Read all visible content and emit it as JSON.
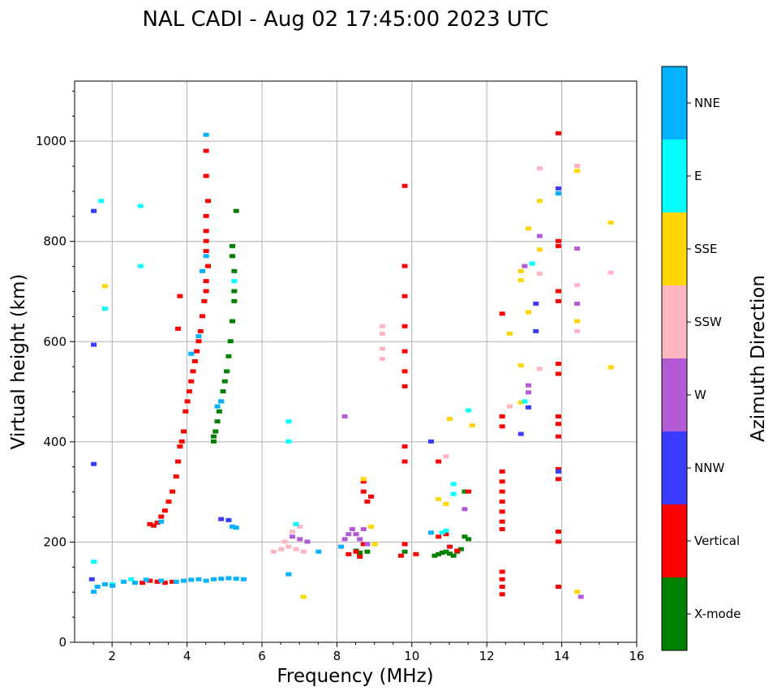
{
  "chart_data": {
    "type": "scatter",
    "title": "NAL CADI - Aug 02 17:45:00 2023 UTC",
    "xlabel": "Frequency (MHz)",
    "ylabel": "Virtual height (km)",
    "xlim": [
      1,
      16
    ],
    "ylim": [
      0,
      1120
    ],
    "xticks": [
      2,
      4,
      6,
      8,
      10,
      12,
      14,
      16
    ],
    "yticks": [
      0,
      200,
      400,
      600,
      800,
      1000
    ],
    "grid": true,
    "colorbar": {
      "label": "Azimuth Direction",
      "entries": [
        {
          "name": "X-mode",
          "color": "#008000"
        },
        {
          "name": "Vertical",
          "color": "#ff0000"
        },
        {
          "name": "NNW",
          "color": "#3b3bff"
        },
        {
          "name": "W",
          "color": "#b35ad6"
        },
        {
          "name": "SSW",
          "color": "#ffb6c1"
        },
        {
          "name": "SSE",
          "color": "#ffd700"
        },
        {
          "name": "E",
          "color": "#00ffff"
        },
        {
          "name": "NNE",
          "color": "#00b2ff"
        }
      ]
    },
    "series": [
      {
        "name": "X-mode",
        "points": [
          [
            4.7,
            400
          ],
          [
            4.7,
            410
          ],
          [
            4.75,
            420
          ],
          [
            4.8,
            440
          ],
          [
            4.85,
            460
          ],
          [
            4.9,
            480
          ],
          [
            4.95,
            500
          ],
          [
            5.0,
            520
          ],
          [
            5.05,
            540
          ],
          [
            5.1,
            570
          ],
          [
            5.15,
            600
          ],
          [
            5.2,
            640
          ],
          [
            5.25,
            680
          ],
          [
            5.25,
            700
          ],
          [
            5.25,
            740
          ],
          [
            5.2,
            770
          ],
          [
            5.2,
            790
          ],
          [
            5.3,
            860
          ],
          [
            10.6,
            172
          ],
          [
            10.7,
            175
          ],
          [
            10.8,
            178
          ],
          [
            10.9,
            180
          ],
          [
            11.0,
            176
          ],
          [
            11.1,
            172
          ],
          [
            11.2,
            180
          ],
          [
            11.3,
            185
          ],
          [
            11.4,
            210
          ],
          [
            11.5,
            205
          ],
          [
            11.4,
            300
          ],
          [
            8.5,
            182
          ],
          [
            8.6,
            178
          ],
          [
            8.8,
            180
          ],
          [
            9.8,
            180
          ]
        ]
      },
      {
        "name": "Vertical",
        "points": [
          [
            3.0,
            235
          ],
          [
            3.1,
            232
          ],
          [
            3.2,
            238
          ],
          [
            3.3,
            250
          ],
          [
            3.4,
            262
          ],
          [
            3.5,
            280
          ],
          [
            3.6,
            300
          ],
          [
            3.7,
            330
          ],
          [
            3.75,
            360
          ],
          [
            3.8,
            390
          ],
          [
            3.85,
            400
          ],
          [
            3.9,
            420
          ],
          [
            3.95,
            460
          ],
          [
            4.0,
            480
          ],
          [
            4.05,
            500
          ],
          [
            4.1,
            520
          ],
          [
            4.15,
            540
          ],
          [
            4.2,
            560
          ],
          [
            4.25,
            580
          ],
          [
            4.3,
            600
          ],
          [
            4.35,
            620
          ],
          [
            4.4,
            650
          ],
          [
            4.45,
            680
          ],
          [
            4.5,
            700
          ],
          [
            4.5,
            720
          ],
          [
            4.55,
            750
          ],
          [
            4.5,
            780
          ],
          [
            4.5,
            800
          ],
          [
            4.5,
            820
          ],
          [
            4.5,
            850
          ],
          [
            4.55,
            880
          ],
          [
            4.5,
            930
          ],
          [
            4.5,
            980
          ],
          [
            3.8,
            690
          ],
          [
            3.75,
            625
          ],
          [
            2.8,
            118
          ],
          [
            3.0,
            122
          ],
          [
            3.2,
            120
          ],
          [
            3.4,
            118
          ],
          [
            3.6,
            120
          ],
          [
            9.8,
            910
          ],
          [
            9.8,
            750
          ],
          [
            9.8,
            690
          ],
          [
            9.8,
            630
          ],
          [
            9.8,
            580
          ],
          [
            9.8,
            540
          ],
          [
            9.8,
            510
          ],
          [
            9.8,
            390
          ],
          [
            9.8,
            360
          ],
          [
            9.7,
            172
          ],
          [
            9.8,
            195
          ],
          [
            10.1,
            175
          ],
          [
            10.7,
            360
          ],
          [
            8.7,
            320
          ],
          [
            8.7,
            300
          ],
          [
            8.8,
            280
          ],
          [
            8.9,
            290
          ],
          [
            8.5,
            180
          ],
          [
            8.6,
            170
          ],
          [
            8.7,
            195
          ],
          [
            8.3,
            175
          ],
          [
            10.7,
            210
          ],
          [
            10.9,
            215
          ],
          [
            11.0,
            190
          ],
          [
            11.2,
            182
          ],
          [
            11.5,
            300
          ],
          [
            12.4,
            655
          ],
          [
            12.4,
            450
          ],
          [
            12.4,
            430
          ],
          [
            12.4,
            340
          ],
          [
            12.4,
            320
          ],
          [
            12.4,
            300
          ],
          [
            12.4,
            280
          ],
          [
            12.4,
            260
          ],
          [
            12.4,
            240
          ],
          [
            12.4,
            225
          ],
          [
            12.4,
            140
          ],
          [
            12.4,
            125
          ],
          [
            12.4,
            110
          ],
          [
            12.4,
            95
          ],
          [
            13.9,
            1015
          ],
          [
            13.9,
            800
          ],
          [
            13.9,
            790
          ],
          [
            13.9,
            700
          ],
          [
            13.9,
            680
          ],
          [
            13.9,
            555
          ],
          [
            13.9,
            535
          ],
          [
            13.9,
            450
          ],
          [
            13.9,
            435
          ],
          [
            13.9,
            410
          ],
          [
            13.9,
            345
          ],
          [
            13.9,
            325
          ],
          [
            13.9,
            220
          ],
          [
            13.9,
            200
          ],
          [
            13.9,
            110
          ]
        ]
      },
      {
        "name": "NNW",
        "points": [
          [
            1.5,
            860
          ],
          [
            1.5,
            593
          ],
          [
            1.5,
            355
          ],
          [
            1.45,
            125
          ],
          [
            12.9,
            415
          ],
          [
            13.1,
            468
          ],
          [
            13.3,
            675
          ],
          [
            13.3,
            620
          ],
          [
            13.9,
            905
          ],
          [
            13.9,
            340
          ],
          [
            4.9,
            245
          ],
          [
            5.1,
            243
          ],
          [
            10.5,
            400
          ]
        ]
      },
      {
        "name": "W",
        "points": [
          [
            8.2,
            205
          ],
          [
            8.3,
            215
          ],
          [
            8.4,
            225
          ],
          [
            8.5,
            215
          ],
          [
            8.6,
            205
          ],
          [
            8.7,
            225
          ],
          [
            8.8,
            195
          ],
          [
            6.8,
            210
          ],
          [
            7.0,
            205
          ],
          [
            7.2,
            200
          ],
          [
            13.0,
            750
          ],
          [
            13.1,
            512
          ],
          [
            13.1,
            498
          ],
          [
            13.4,
            810
          ],
          [
            14.4,
            785
          ],
          [
            14.4,
            675
          ],
          [
            14.5,
            90
          ],
          [
            11.4,
            265
          ],
          [
            8.2,
            450
          ]
        ]
      },
      {
        "name": "SSW",
        "points": [
          [
            6.3,
            180
          ],
          [
            6.5,
            185
          ],
          [
            6.7,
            190
          ],
          [
            6.9,
            185
          ],
          [
            7.1,
            180
          ],
          [
            6.6,
            200
          ],
          [
            6.8,
            220
          ],
          [
            7.0,
            230
          ],
          [
            9.2,
            630
          ],
          [
            9.2,
            615
          ],
          [
            9.2,
            585
          ],
          [
            9.2,
            565
          ],
          [
            12.6,
            470
          ],
          [
            13.4,
            945
          ],
          [
            13.4,
            735
          ],
          [
            13.4,
            545
          ],
          [
            14.4,
            950
          ],
          [
            14.4,
            712
          ],
          [
            14.4,
            620
          ],
          [
            15.3,
            737
          ],
          [
            10.9,
            370
          ]
        ]
      },
      {
        "name": "SSE",
        "points": [
          [
            1.8,
            710
          ],
          [
            7.1,
            90
          ],
          [
            8.9,
            230
          ],
          [
            9.0,
            195
          ],
          [
            8.7,
            325
          ],
          [
            10.7,
            285
          ],
          [
            10.9,
            275
          ],
          [
            11.0,
            445
          ],
          [
            11.6,
            432
          ],
          [
            12.6,
            615
          ],
          [
            12.9,
            740
          ],
          [
            12.9,
            722
          ],
          [
            12.9,
            552
          ],
          [
            12.9,
            478
          ],
          [
            13.1,
            825
          ],
          [
            13.1,
            658
          ],
          [
            13.4,
            880
          ],
          [
            13.4,
            783
          ],
          [
            14.4,
            940
          ],
          [
            14.4,
            640
          ],
          [
            14.4,
            100
          ],
          [
            15.3,
            837
          ],
          [
            15.3,
            548
          ]
        ]
      },
      {
        "name": "E",
        "points": [
          [
            1.7,
            880
          ],
          [
            1.8,
            665
          ],
          [
            2.75,
            870
          ],
          [
            2.75,
            750
          ],
          [
            1.5,
            160
          ],
          [
            2.0,
            115
          ],
          [
            2.5,
            125
          ],
          [
            5.25,
            720
          ],
          [
            6.7,
            440
          ],
          [
            6.7,
            400
          ],
          [
            6.9,
            235
          ],
          [
            11.1,
            295
          ],
          [
            11.1,
            315
          ],
          [
            11.5,
            462
          ],
          [
            13.0,
            480
          ],
          [
            13.2,
            755
          ],
          [
            10.9,
            222
          ],
          [
            10.8,
            218
          ]
        ]
      },
      {
        "name": "NNE",
        "points": [
          [
            1.5,
            100
          ],
          [
            1.6,
            110
          ],
          [
            1.8,
            115
          ],
          [
            2.0,
            112
          ],
          [
            2.3,
            120
          ],
          [
            2.6,
            118
          ],
          [
            2.9,
            124
          ],
          [
            3.3,
            122
          ],
          [
            3.7,
            120
          ],
          [
            3.9,
            122
          ],
          [
            4.1,
            124
          ],
          [
            4.3,
            125
          ],
          [
            4.5,
            122
          ],
          [
            4.7,
            125
          ],
          [
            4.9,
            126
          ],
          [
            5.1,
            127
          ],
          [
            5.3,
            126
          ],
          [
            5.5,
            125
          ],
          [
            4.5,
            1012
          ],
          [
            4.5,
            770
          ],
          [
            4.4,
            740
          ],
          [
            4.3,
            610
          ],
          [
            4.1,
            575
          ],
          [
            4.8,
            470
          ],
          [
            4.9,
            480
          ],
          [
            6.7,
            135
          ],
          [
            5.2,
            230
          ],
          [
            5.3,
            228
          ],
          [
            7.5,
            180
          ],
          [
            8.1,
            190
          ],
          [
            10.5,
            218
          ],
          [
            13.9,
            895
          ],
          [
            3.3,
            240
          ]
        ]
      }
    ]
  }
}
